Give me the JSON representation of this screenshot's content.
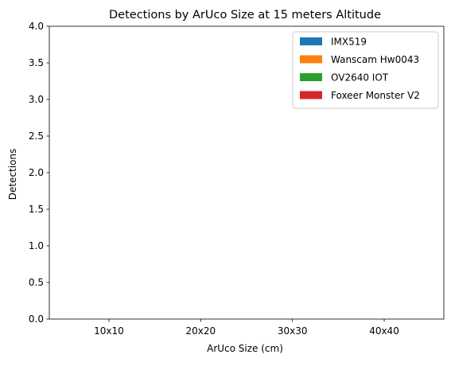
{
  "chart_data": {
    "type": "bar",
    "title": "Detections by ArUco Size at 15 meters Altitude",
    "xlabel": "ArUco Size (cm)",
    "ylabel": "Detections",
    "categories": [
      "10x10",
      "20x20",
      "30x30",
      "40x40"
    ],
    "ylim": [
      0,
      4.0
    ],
    "yticks": [
      "0.0",
      "0.5",
      "1.0",
      "1.5",
      "2.0",
      "2.5",
      "3.0",
      "3.5",
      "4.0"
    ],
    "grid": false,
    "legend_position": "top-right",
    "series": [
      {
        "name": "IMX519",
        "color": "#1f77b4",
        "values": [
          0,
          0,
          0,
          0
        ]
      },
      {
        "name": "Wanscam Hw0043",
        "color": "#ff7f0e",
        "values": [
          0,
          0,
          0,
          0
        ]
      },
      {
        "name": "OV2640 IOT",
        "color": "#2ca02c",
        "values": [
          0,
          0,
          0,
          0
        ]
      },
      {
        "name": "Foxeer Monster V2",
        "color": "#d62728",
        "values": [
          0,
          0,
          0,
          0
        ]
      }
    ]
  }
}
